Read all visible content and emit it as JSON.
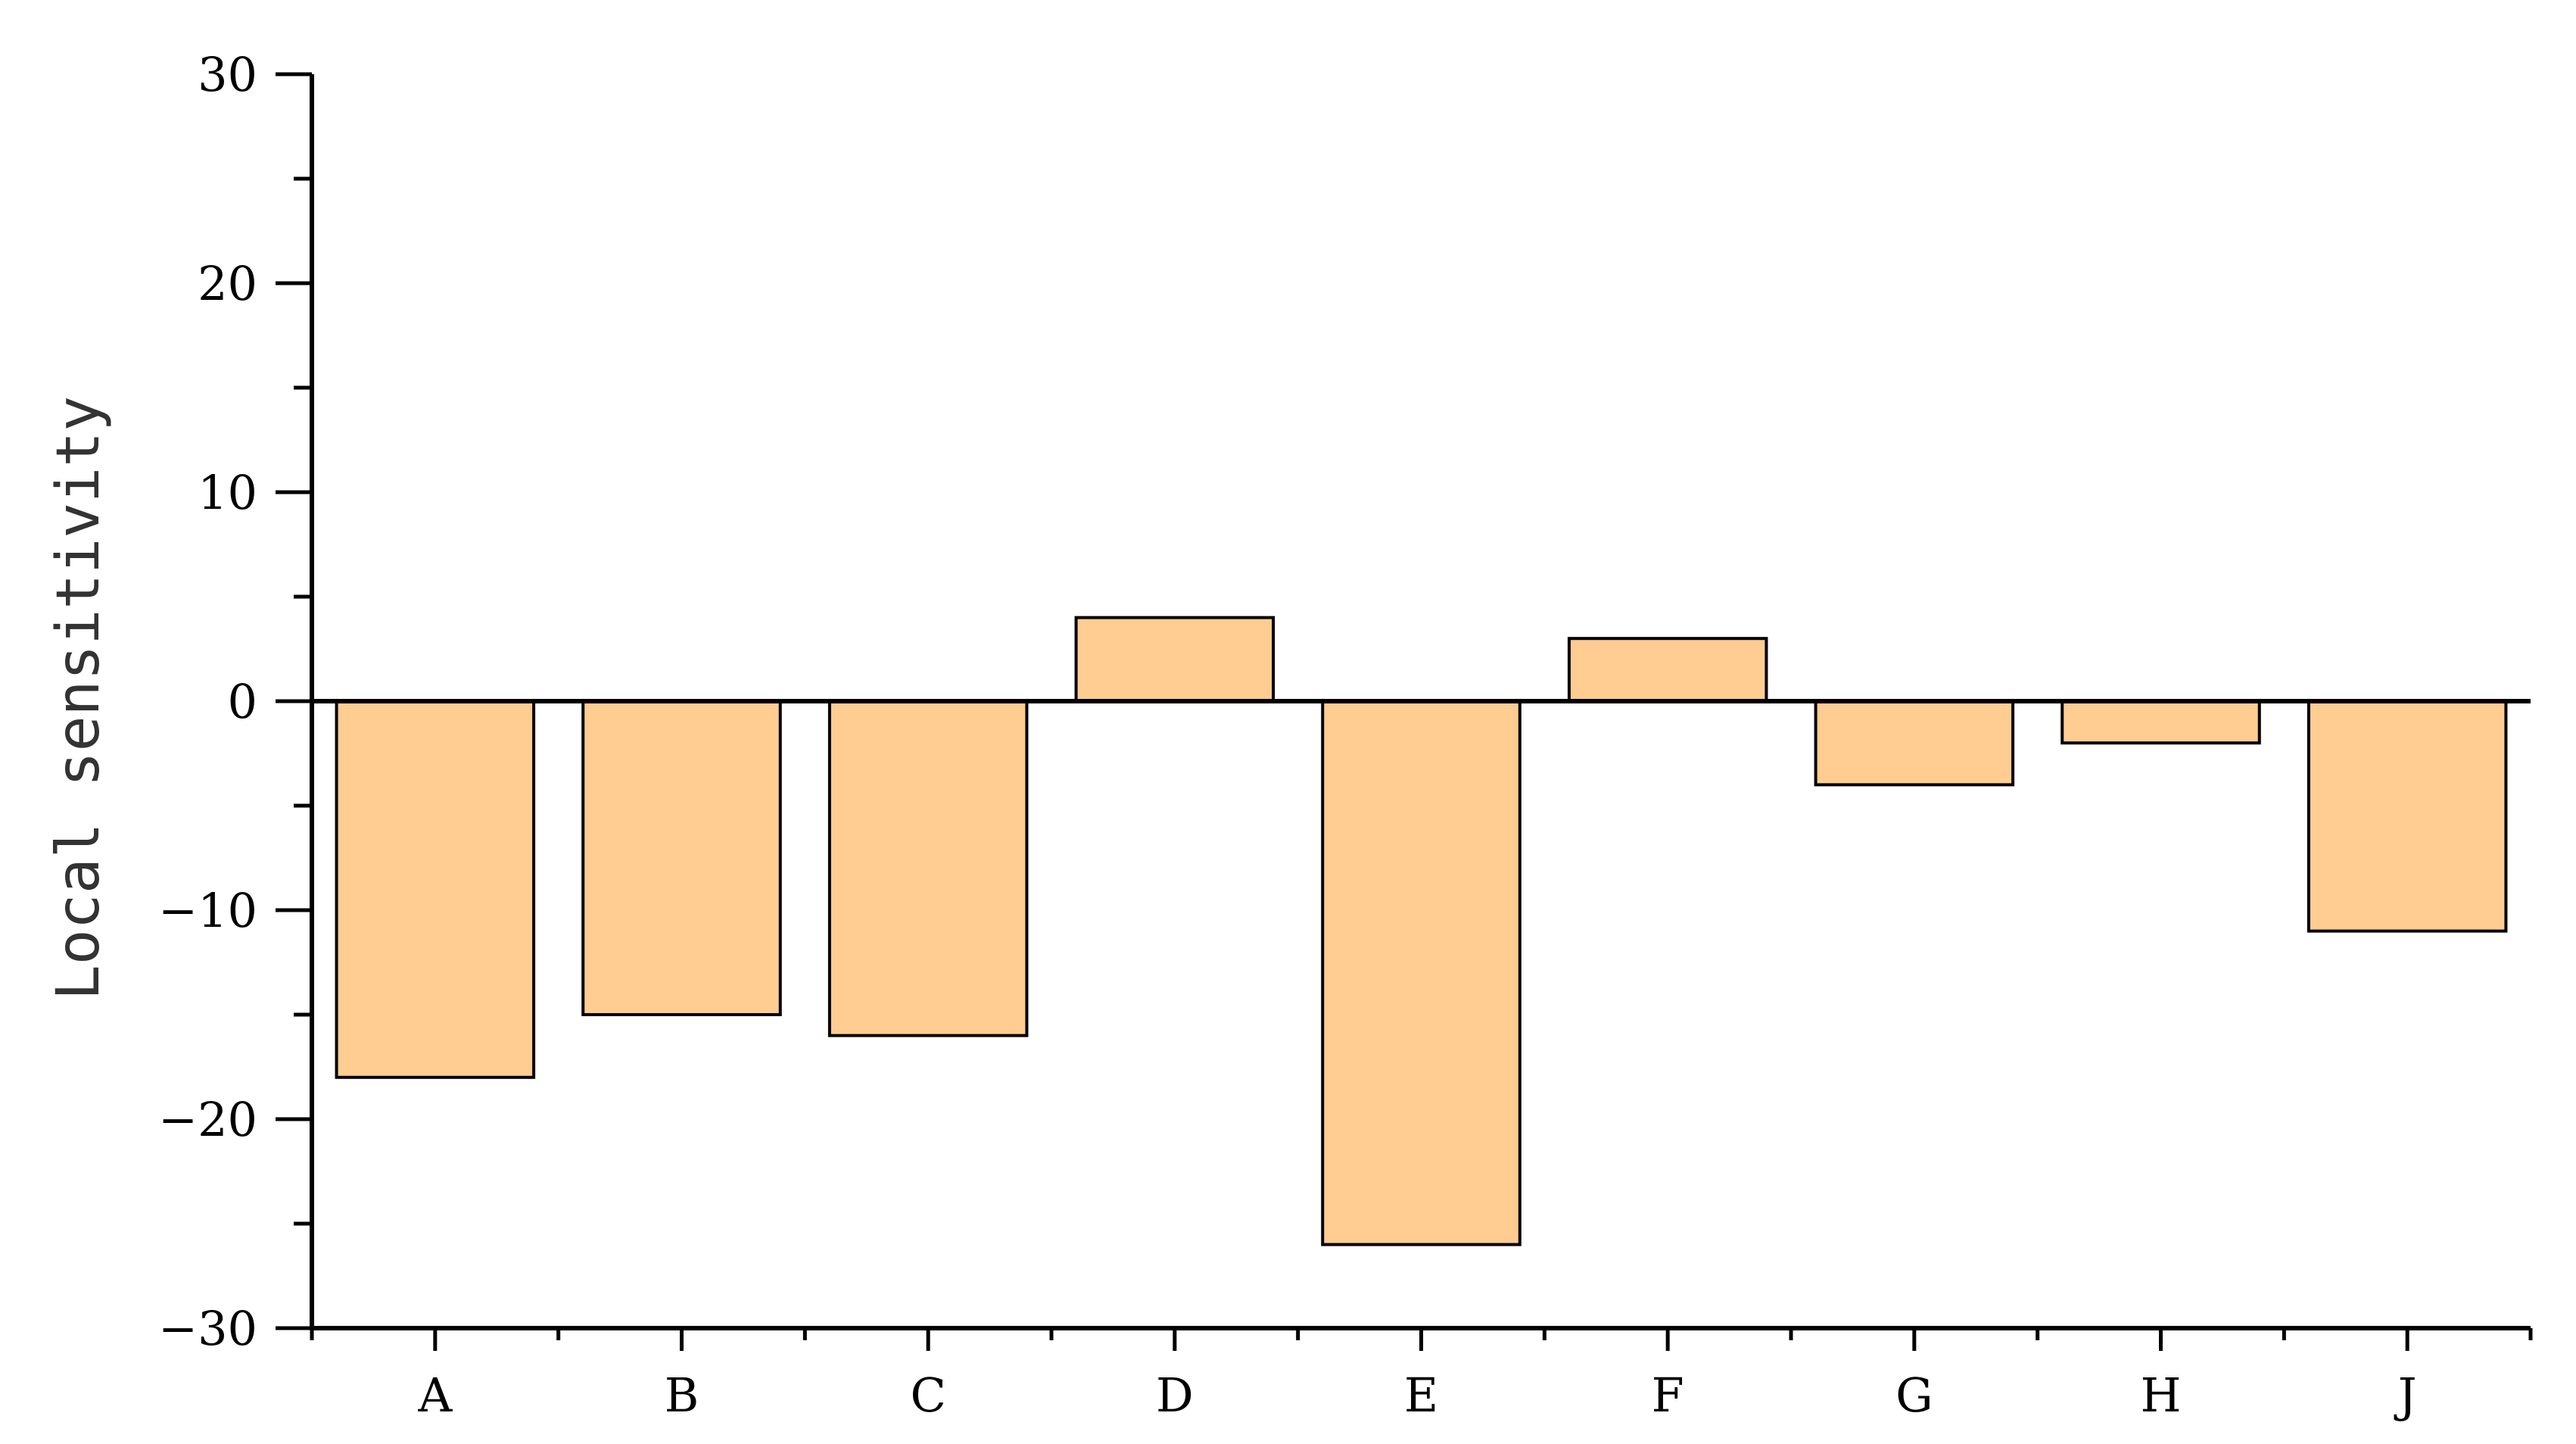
{
  "chart_data": {
    "type": "bar",
    "title": "",
    "xlabel": "",
    "ylabel": "Local sensitivity",
    "categories": [
      "A",
      "B",
      "C",
      "D",
      "E",
      "F",
      "G",
      "H",
      "J"
    ],
    "values": [
      -18,
      -15,
      -16,
      4,
      -26,
      3,
      -4,
      -2,
      -11
    ],
    "ylim": [
      -30,
      30
    ],
    "yticks": [
      30,
      20,
      10,
      0,
      -10,
      -20,
      -30
    ],
    "ytick_labels": [
      "30",
      "20",
      "10",
      "0",
      "−10",
      "−20",
      "−30"
    ],
    "grid": false,
    "legend": "none",
    "bar_color": "#FFCC91",
    "bar_edge_color": "#000000",
    "axis_color": "#000000"
  }
}
